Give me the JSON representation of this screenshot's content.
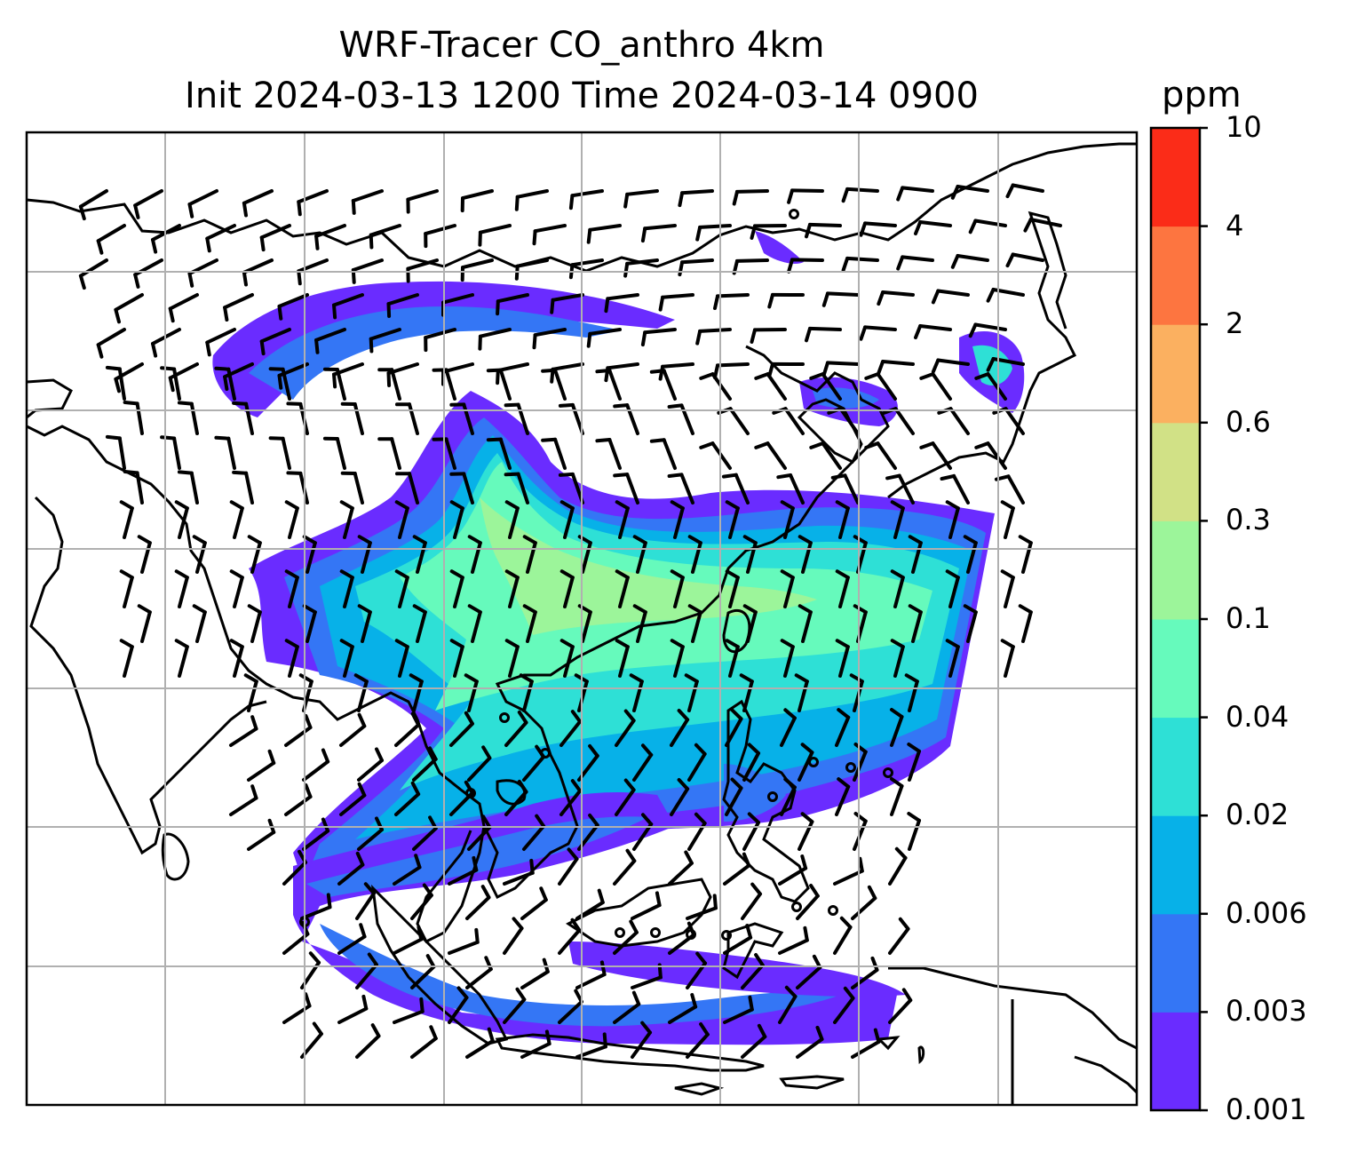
{
  "title": {
    "line1": "WRF-Tracer CO_anthro 4km",
    "line2": "Init 2024-03-13 1200 Time 2024-03-14 0900"
  },
  "colorbar": {
    "unit": "ppm",
    "levels": [
      "0.001",
      "0.003",
      "0.006",
      "0.02",
      "0.04",
      "0.1",
      "0.3",
      "0.6",
      "2",
      "4",
      "10"
    ],
    "colors": [
      "#6a2cff",
      "#3476f5",
      "#07b1e8",
      "#2ee0d6",
      "#66fabc",
      "#9cf59a",
      "#d1e186",
      "#fbb060",
      "#fd7540",
      "#fb2c18"
    ]
  },
  "map": {
    "projection": "lat-lon",
    "gridlines": true,
    "coastlines": true,
    "wind_barbs": true
  }
}
